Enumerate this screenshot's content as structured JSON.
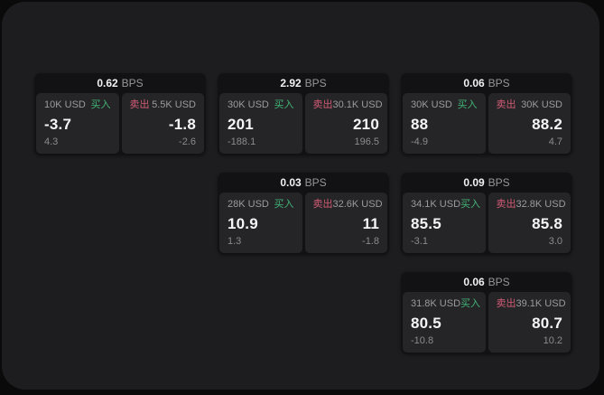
{
  "labels": {
    "bps_unit": "BPS",
    "buy": "买入",
    "sell": "卖出"
  },
  "colors": {
    "buy_green": "#42b576",
    "sell_red": "#d25b73",
    "surface_bg": "#1d1d1f",
    "card_header_bg": "#121214",
    "pane_bg": "#252528",
    "outer_bg": "#0a0a0b"
  },
  "cards": [
    {
      "bps": "0.62",
      "buy": {
        "size": "10K USD",
        "price": "-3.7",
        "delta": "4.3"
      },
      "sell": {
        "size": "5.5K USD",
        "price": "-1.8",
        "delta": "-2.6"
      }
    },
    {
      "bps": "2.92",
      "buy": {
        "size": "30K USD",
        "price": "201",
        "delta": "-188.1"
      },
      "sell": {
        "size": "30.1K USD",
        "price": "210",
        "delta": "196.5"
      }
    },
    {
      "bps": "0.06",
      "buy": {
        "size": "30K USD",
        "price": "88",
        "delta": "-4.9"
      },
      "sell": {
        "size": "30K USD",
        "price": "88.2",
        "delta": "4.7"
      }
    },
    {
      "bps": "0.03",
      "buy": {
        "size": "28K USD",
        "price": "10.9",
        "delta": "1.3"
      },
      "sell": {
        "size": "32.6K USD",
        "price": "11",
        "delta": "-1.8"
      }
    },
    {
      "bps": "0.09",
      "buy": {
        "size": "34.1K USD",
        "price": "85.5",
        "delta": "-3.1"
      },
      "sell": {
        "size": "32.8K USD",
        "price": "85.8",
        "delta": "3.0"
      }
    },
    {
      "bps": "0.06",
      "buy": {
        "size": "31.8K USD",
        "price": "80.5",
        "delta": "-10.8"
      },
      "sell": {
        "size": "39.1K USD",
        "price": "80.7",
        "delta": "10.2"
      }
    }
  ]
}
